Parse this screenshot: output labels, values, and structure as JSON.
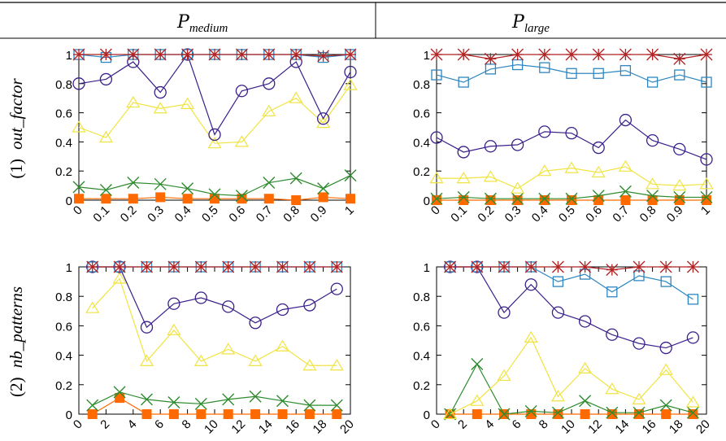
{
  "header": {
    "col1": {
      "main": "P",
      "sub": "medium"
    },
    "col2": {
      "main": "P",
      "sub": "large"
    }
  },
  "rows": [
    {
      "num": "(1)",
      "name": "out_factor"
    },
    {
      "num": "(2)",
      "name": "nb_patterns"
    }
  ],
  "colors": {
    "star": "#b22222",
    "square": "#2e86c1",
    "circle": "#3b1f8a",
    "triangle": "#f0e442",
    "cross": "#2e8b2e",
    "filled": "#ff6a00"
  },
  "chart_data": [
    {
      "type": "line",
      "row": 0,
      "col": 0,
      "x": [
        0,
        0.1,
        0.2,
        0.3,
        0.4,
        0.5,
        0.6,
        0.7,
        0.8,
        0.9,
        1
      ],
      "xticks": [
        "0",
        "0.1",
        "0.2",
        "0.3",
        "0.4",
        "0.5",
        "0.6",
        "0.7",
        "0.8",
        "0.9",
        "1"
      ],
      "xlim": [
        0,
        1
      ],
      "yticks": [
        "0",
        "0.2",
        "0.4",
        "0.6",
        "0.8",
        "1"
      ],
      "ylim": [
        0,
        1
      ],
      "series": [
        {
          "marker": "star",
          "values": [
            1,
            1,
            1,
            1,
            1,
            1,
            1,
            1,
            1,
            0.99,
            1
          ]
        },
        {
          "marker": "square",
          "values": [
            1,
            0.98,
            1,
            1,
            1,
            1,
            1,
            1,
            1,
            0.98,
            1
          ]
        },
        {
          "marker": "circle",
          "values": [
            0.8,
            0.83,
            0.95,
            0.74,
            1,
            0.45,
            0.75,
            0.8,
            0.95,
            0.56,
            0.88
          ]
        },
        {
          "marker": "triangle",
          "values": [
            0.5,
            0.43,
            0.67,
            0.63,
            0.66,
            0.39,
            0.4,
            0.61,
            0.7,
            0.53,
            0.79
          ]
        },
        {
          "marker": "cross",
          "values": [
            0.09,
            0.07,
            0.12,
            0.11,
            0.08,
            0.04,
            0.03,
            0.12,
            0.15,
            0.08,
            0.17
          ]
        },
        {
          "marker": "filled",
          "values": [
            0.01,
            0.01,
            0.01,
            0.02,
            0.01,
            0.01,
            0.01,
            0.01,
            0.0,
            0.02,
            0.01
          ]
        }
      ]
    },
    {
      "type": "line",
      "row": 0,
      "col": 1,
      "x": [
        0,
        0.1,
        0.2,
        0.3,
        0.4,
        0.5,
        0.6,
        0.7,
        0.8,
        0.9,
        1
      ],
      "xticks": [
        "0",
        "0.1",
        "0.2",
        "0.3",
        "0.4",
        "0.5",
        "0.6",
        "0.7",
        "0.8",
        "0.9",
        "1"
      ],
      "xlim": [
        0,
        1
      ],
      "yticks": [
        "0",
        "0.2",
        "0.4",
        "0.6",
        "0.8",
        "1"
      ],
      "ylim": [
        0,
        1
      ],
      "series": [
        {
          "marker": "star",
          "values": [
            1,
            1,
            0.97,
            1,
            1,
            1,
            1,
            1,
            1,
            0.97,
            1
          ]
        },
        {
          "marker": "square",
          "values": [
            0.86,
            0.81,
            0.9,
            0.93,
            0.91,
            0.87,
            0.87,
            0.89,
            0.81,
            0.86,
            0.81
          ]
        },
        {
          "marker": "circle",
          "values": [
            0.43,
            0.33,
            0.37,
            0.38,
            0.47,
            0.46,
            0.36,
            0.55,
            0.41,
            0.35,
            0.28
          ]
        },
        {
          "marker": "triangle",
          "values": [
            0.15,
            0.15,
            0.16,
            0.08,
            0.2,
            0.22,
            0.19,
            0.23,
            0.11,
            0.1,
            0.11
          ]
        },
        {
          "marker": "cross",
          "values": [
            0.01,
            0.02,
            0.01,
            0.01,
            0.01,
            0.01,
            0.03,
            0.06,
            0.03,
            0.02,
            0.02
          ]
        },
        {
          "marker": "filled",
          "values": [
            0,
            0,
            0,
            0,
            0,
            0,
            0,
            0,
            0,
            0,
            0
          ]
        }
      ]
    },
    {
      "type": "line",
      "row": 1,
      "col": 0,
      "x": [
        1,
        3,
        5,
        7,
        9,
        11,
        13,
        15,
        17,
        19
      ],
      "xticks": [
        "0",
        "2",
        "4",
        "6",
        "8",
        "10",
        "12",
        "14",
        "16",
        "18",
        "20"
      ],
      "xtick_values": [
        0,
        2,
        4,
        6,
        8,
        10,
        12,
        14,
        16,
        18,
        20
      ],
      "xlim": [
        0,
        20
      ],
      "yticks": [
        "0",
        "0.2",
        "0.4",
        "0.6",
        "0.8",
        "1"
      ],
      "ylim": [
        0,
        1
      ],
      "series": [
        {
          "marker": "star",
          "values": [
            1,
            1,
            1,
            1,
            1,
            1,
            1,
            1,
            1,
            1
          ]
        },
        {
          "marker": "square",
          "values": [
            1,
            1,
            1,
            1,
            1,
            1,
            1,
            1,
            1,
            1
          ]
        },
        {
          "marker": "circle",
          "values": [
            1,
            1,
            0.59,
            0.75,
            0.79,
            0.73,
            0.62,
            0.71,
            0.74,
            0.85
          ]
        },
        {
          "marker": "triangle",
          "values": [
            0.72,
            0.92,
            0.36,
            0.57,
            0.36,
            0.44,
            0.36,
            0.46,
            0.33,
            0.33
          ]
        },
        {
          "marker": "cross",
          "values": [
            0.06,
            0.15,
            0.1,
            0.08,
            0.07,
            0.1,
            0.12,
            0.09,
            0.06,
            0.06
          ]
        },
        {
          "marker": "filled",
          "values": [
            0.0,
            0.11,
            0.0,
            0.0,
            0.0,
            0.0,
            0.0,
            0.0,
            0.0,
            0.0
          ]
        }
      ]
    },
    {
      "type": "line",
      "row": 1,
      "col": 1,
      "x": [
        1,
        3,
        5,
        7,
        9,
        11,
        13,
        15,
        17,
        19
      ],
      "xticks": [
        "0",
        "2",
        "4",
        "6",
        "8",
        "10",
        "12",
        "14",
        "16",
        "18",
        "20"
      ],
      "xtick_values": [
        0,
        2,
        4,
        6,
        8,
        10,
        12,
        14,
        16,
        18,
        20
      ],
      "xlim": [
        0,
        20
      ],
      "yticks": [
        "0",
        "0.2",
        "0.4",
        "0.6",
        "0.8",
        "1"
      ],
      "ylim": [
        0,
        1
      ],
      "series": [
        {
          "marker": "star",
          "values": [
            1,
            1,
            1,
            1,
            1,
            1,
            0.98,
            1,
            1,
            1
          ]
        },
        {
          "marker": "square",
          "values": [
            1,
            1,
            1,
            1,
            0.9,
            0.95,
            0.83,
            0.94,
            0.9,
            0.78
          ]
        },
        {
          "marker": "circle",
          "values": [
            1,
            1,
            0.69,
            0.88,
            0.69,
            0.63,
            0.54,
            0.48,
            0.45,
            0.52
          ]
        },
        {
          "marker": "triangle",
          "values": [
            0.0,
            0.09,
            0.26,
            0.52,
            0.12,
            0.31,
            0.17,
            0.1,
            0.3,
            0.08
          ]
        },
        {
          "marker": "cross",
          "values": [
            0.0,
            0.34,
            0.0,
            0.02,
            0.01,
            0.09,
            0.01,
            0.01,
            0.06,
            0.01
          ]
        },
        {
          "marker": "filled",
          "values": [
            0.0,
            0.0,
            0.0,
            0.0,
            0.0,
            0.0,
            0.0,
            0.0,
            0.0,
            0.0
          ]
        }
      ]
    }
  ]
}
